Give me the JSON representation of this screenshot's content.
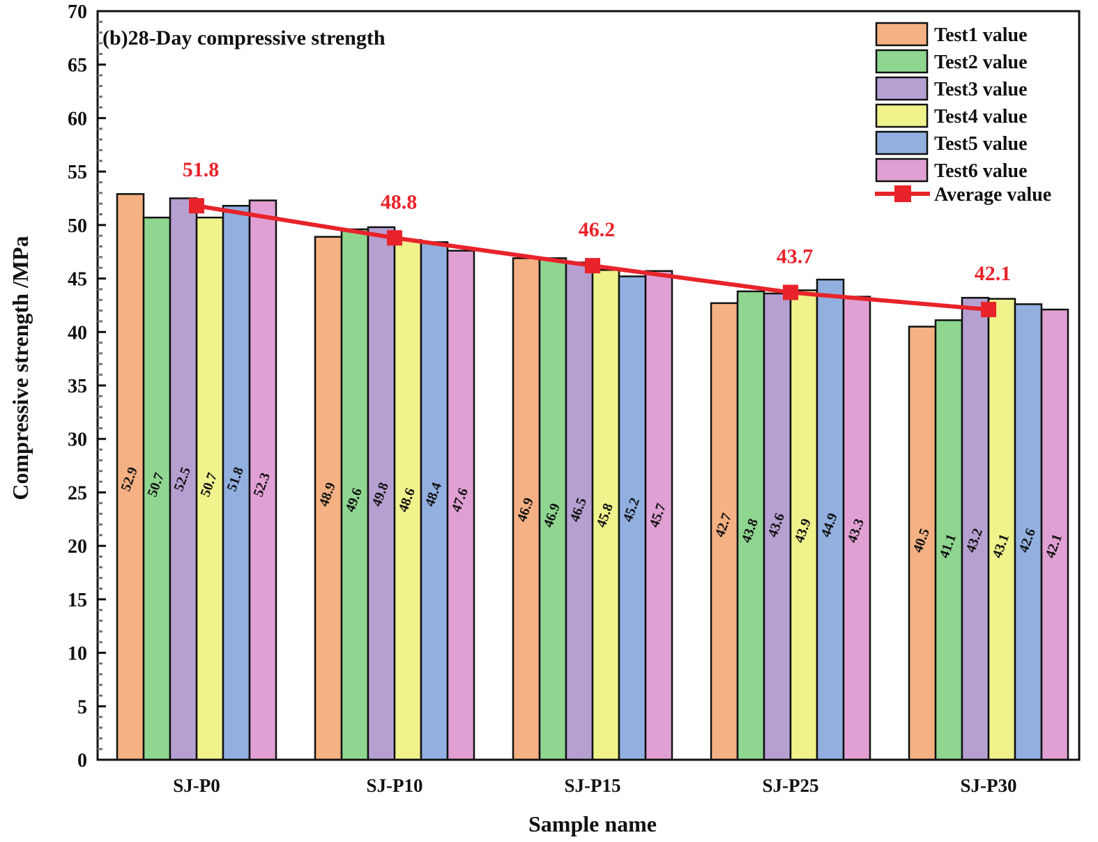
{
  "chart_data": {
    "type": "bar",
    "title": "(b)28-Day compressive strength",
    "xlabel": "Sample name",
    "ylabel": "Compressive strength /MPa",
    "ylim": [
      0,
      70
    ],
    "yticks": [
      "0",
      "5",
      "10",
      "15",
      "20",
      "25",
      "30",
      "35",
      "40",
      "45",
      "50",
      "55",
      "60",
      "65",
      "70"
    ],
    "categories": [
      "SJ-P0",
      "SJ-P10",
      "SJ-P15",
      "SJ-P25",
      "SJ-P30"
    ],
    "series": [
      {
        "name": "Test1 value",
        "color": "#F5B183",
        "values": [
          52.9,
          48.9,
          46.9,
          42.7,
          40.5
        ],
        "labels": [
          "52.9",
          "48.9",
          "46.9",
          "42.7",
          "40.5"
        ]
      },
      {
        "name": "Test2 value",
        "color": "#8FD690",
        "values": [
          50.7,
          49.6,
          46.9,
          43.8,
          41.1
        ],
        "labels": [
          "50.7",
          "49.6",
          "46.9",
          "43.8",
          "41.1"
        ]
      },
      {
        "name": "Test3 value",
        "color": "#B6A0D2",
        "values": [
          52.5,
          49.8,
          46.5,
          43.6,
          43.2
        ],
        "labels": [
          "52.5",
          "49.8",
          "46.5",
          "43.6",
          "43.2"
        ]
      },
      {
        "name": "Test4 value",
        "color": "#F0F28C",
        "values": [
          50.7,
          48.6,
          45.8,
          43.9,
          43.1
        ],
        "labels": [
          "50.7",
          "48.6",
          "45.8",
          "43.9",
          "43.1"
        ]
      },
      {
        "name": "Test5 value",
        "color": "#91B0E0",
        "values": [
          51.8,
          48.4,
          45.2,
          44.9,
          42.6
        ],
        "labels": [
          "51.8",
          "48.4",
          "45.2",
          "44.9",
          "42.6"
        ]
      },
      {
        "name": "Test6 value",
        "color": "#E0A0D4",
        "values": [
          52.3,
          47.6,
          45.7,
          43.3,
          42.1
        ],
        "labels": [
          "52.3",
          "47.6",
          "45.7",
          "43.3",
          "42.1"
        ]
      }
    ],
    "line_series": {
      "name": "Average value",
      "color": "#E8232A",
      "values": [
        51.8,
        48.8,
        46.2,
        43.7,
        42.1
      ],
      "labels": [
        "51.8",
        "48.8",
        "46.2",
        "43.7",
        "42.1"
      ]
    },
    "legend_position": "top-right",
    "grid": false
  }
}
